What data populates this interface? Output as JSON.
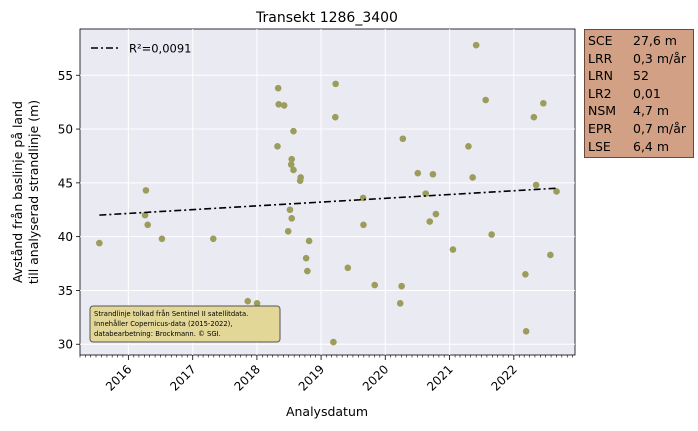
{
  "chart_data": {
    "type": "scatter",
    "title": "Transekt 1286_3400",
    "xlabel": "Analysdatum",
    "ylabel_lines": [
      "Avstånd från baslinje på land",
      "till analyserad strandlinje (m)"
    ],
    "xlim": [
      "2015-04-01",
      "2022-12-15"
    ],
    "ylim": [
      29,
      59.3
    ],
    "x_ticks": [
      "2016",
      "2017",
      "2018",
      "2019",
      "2020",
      "2021",
      "2022"
    ],
    "y_ticks": [
      30,
      35,
      40,
      45,
      50,
      55
    ],
    "grid": true,
    "legend": {
      "placement": "top-left",
      "entries": [
        "R²=0,0091"
      ]
    },
    "series": [
      {
        "type": "scatter",
        "color": "#9c9c5c",
        "points": [
          [
            "2015-07-20",
            39.4
          ],
          [
            "2016-04-10",
            44.3
          ],
          [
            "2016-04-05",
            42.0
          ],
          [
            "2016-04-20",
            41.1
          ],
          [
            "2016-07-10",
            39.8
          ],
          [
            "2017-04-28",
            39.8
          ],
          [
            "2017-11-10",
            34.0
          ],
          [
            "2018-01-02",
            33.8
          ],
          [
            "2018-04-28",
            48.4
          ],
          [
            "2018-05-02",
            53.8
          ],
          [
            "2018-05-05",
            52.3
          ],
          [
            "2018-06-05",
            52.2
          ],
          [
            "2018-06-28",
            40.5
          ],
          [
            "2018-07-08",
            42.5
          ],
          [
            "2018-07-18",
            41.7
          ],
          [
            "2018-07-15",
            46.7
          ],
          [
            "2018-07-18",
            47.2
          ],
          [
            "2018-07-28",
            46.2
          ],
          [
            "2018-07-28",
            49.8
          ],
          [
            "2018-09-04",
            45.2
          ],
          [
            "2018-09-07",
            45.5
          ],
          [
            "2018-10-08",
            38.0
          ],
          [
            "2018-10-15",
            36.8
          ],
          [
            "2018-10-25",
            39.6
          ],
          [
            "2019-03-12",
            30.2
          ],
          [
            "2019-03-25",
            54.2
          ],
          [
            "2019-03-23",
            51.1
          ],
          [
            "2019-06-02",
            37.1
          ],
          [
            "2019-08-28",
            43.6
          ],
          [
            "2019-08-30",
            41.1
          ],
          [
            "2019-11-02",
            35.5
          ],
          [
            "2020-03-26",
            33.8
          ],
          [
            "2020-04-03",
            35.4
          ],
          [
            "2020-04-10",
            49.1
          ],
          [
            "2020-07-04",
            45.9
          ],
          [
            "2020-08-18",
            44.0
          ],
          [
            "2020-09-10",
            41.4
          ],
          [
            "2020-09-28",
            45.8
          ],
          [
            "2020-10-15",
            42.1
          ],
          [
            "2021-01-20",
            38.8
          ],
          [
            "2021-04-18",
            48.4
          ],
          [
            "2021-05-12",
            45.5
          ],
          [
            "2021-06-01",
            57.8
          ],
          [
            "2021-07-25",
            52.7
          ],
          [
            "2021-08-28",
            40.2
          ],
          [
            "2022-03-12",
            31.2
          ],
          [
            "2022-03-08",
            36.5
          ],
          [
            "2022-04-25",
            51.1
          ],
          [
            "2022-05-08",
            44.8
          ],
          [
            "2022-06-18",
            52.4
          ],
          [
            "2022-07-28",
            38.3
          ],
          [
            "2022-09-01",
            44.2
          ]
        ]
      },
      {
        "type": "line",
        "style": "dash-dot",
        "color": "#000000",
        "name": "R²=0,0091",
        "points": [
          [
            "2015-07-20",
            42.0
          ],
          [
            "2022-09-01",
            44.5
          ]
        ]
      }
    ]
  },
  "annotation_lines": [
    "Strandlinje tolkad från Sentinel II satellitdata.",
    "Innehåller Copernicus-data (2015-2022),",
    "databearbetning: Brockmann. © SGI."
  ],
  "annotation_color": "#e2d796",
  "stats": [
    {
      "key": "SCE",
      "value": "27,6 m"
    },
    {
      "key": "LRR",
      "value": "0,3 m/år"
    },
    {
      "key": "LRN",
      "value": "52"
    },
    {
      "key": "LR2",
      "value": "0,01"
    },
    {
      "key": "NSM",
      "value": "4,7 m"
    },
    {
      "key": "EPR",
      "value": "0,7 m/år"
    },
    {
      "key": "LSE",
      "value": "6,4 m"
    }
  ],
  "stats_color": "#d2a084"
}
